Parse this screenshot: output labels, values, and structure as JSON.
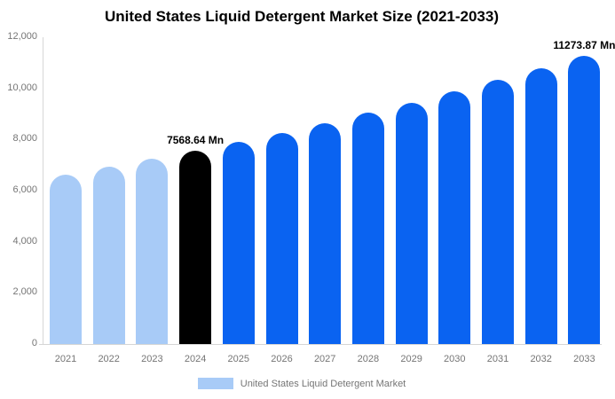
{
  "title": "United States Liquid Detergent Market Size (2021-2033)",
  "chart_data": {
    "type": "bar",
    "title": "United States Liquid Detergent Market Size (2021-2033)",
    "categories": [
      "2021",
      "2022",
      "2023",
      "2024",
      "2025",
      "2026",
      "2027",
      "2028",
      "2029",
      "2030",
      "2031",
      "2032",
      "2033"
    ],
    "series": [
      {
        "name": "United States Liquid Detergent Market",
        "values": [
          6627,
          6927,
          7241,
          7568.64,
          7911,
          8269,
          8644,
          9035,
          9444,
          9872,
          10319,
          10786,
          11273.87
        ]
      }
    ],
    "bar_colors": [
      "#A8CBF7",
      "#A8CBF7",
      "#A8CBF7",
      "#000000",
      "#0A63F1",
      "#0A63F1",
      "#0A63F1",
      "#0A63F1",
      "#0A63F1",
      "#0A63F1",
      "#0A63F1",
      "#0A63F1",
      "#0A63F1"
    ],
    "data_labels": [
      {
        "category": "2024",
        "text": "7568.64 Mn"
      },
      {
        "category": "2033",
        "text": "11273.87 Mn"
      }
    ],
    "ylim": [
      0,
      12000
    ],
    "ytick_labels": [
      "0",
      "2,000",
      "4,000",
      "6,000",
      "8,000",
      "10,000",
      "12,000"
    ],
    "xlabel": "",
    "ylabel": "",
    "grid": false,
    "legend": {
      "position": "bottom",
      "entries": [
        {
          "label": "United States Liquid Detergent Market",
          "color": "#A8CBF7"
        }
      ]
    }
  },
  "colors": {
    "historical_bar": "#A8CBF7",
    "highlight_bar": "#000000",
    "forecast_bar": "#0A63F1",
    "axis_text": "#757575",
    "axis_line": "#D6D6D6",
    "title_text": "#000000",
    "background": "#FFFFFF"
  }
}
